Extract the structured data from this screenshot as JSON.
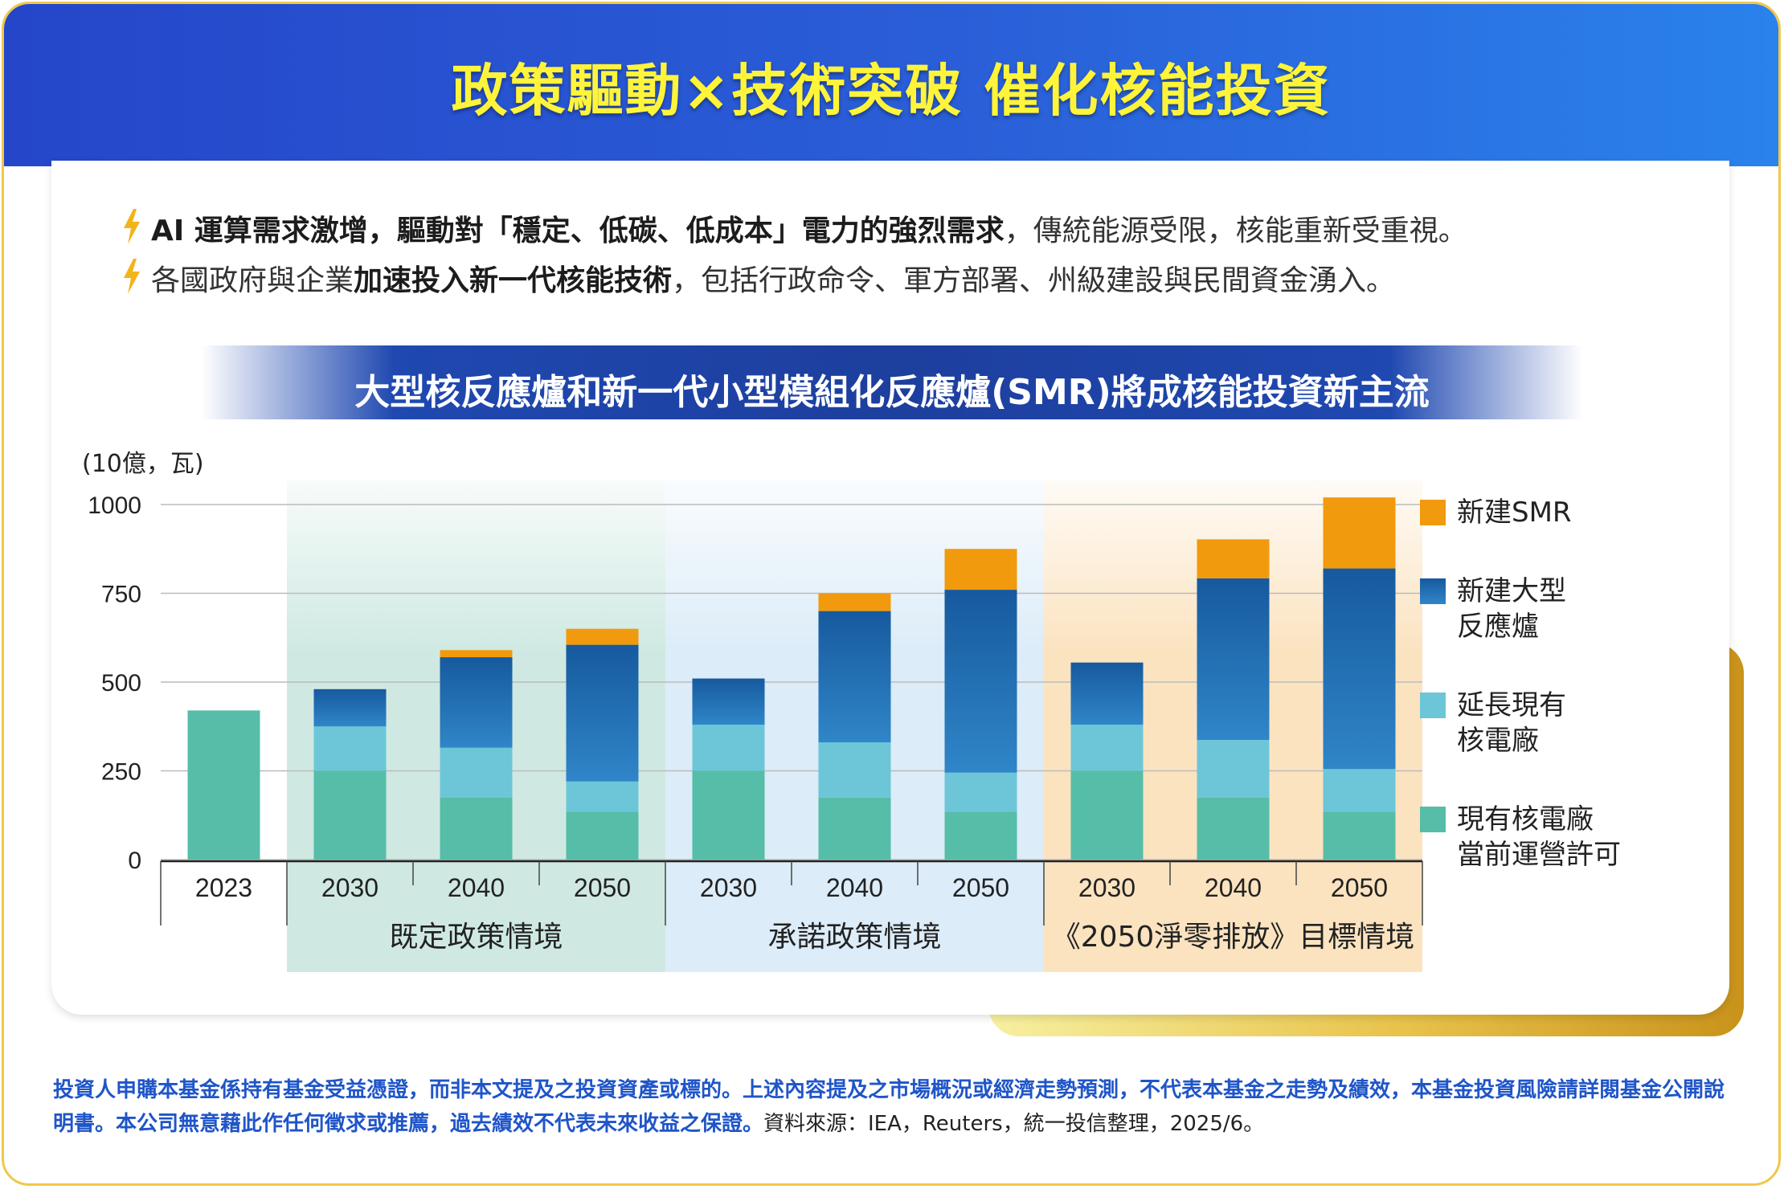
{
  "header": {
    "title": "政策驅動×技術突破  催化核能投資"
  },
  "bullets": [
    {
      "bold": "AI 運算需求激增，驅動對「穩定、低碳、低成本」電力的強烈需求",
      "rest": "，傳統能源受限，核能重新受重視。"
    },
    {
      "pre": "各國政府與企業",
      "bold": "加速投入新一代核能技術",
      "rest": "，包括行政命令、軍方部署、州級建設與民間資金湧入。"
    }
  ],
  "banner": {
    "title": "大型核反應爐和新一代小型模組化反應爐(SMR)將成核能投資新主流"
  },
  "colors": {
    "existing": "#56bda8",
    "extend": "#6cc6d8",
    "large": "#1a6fb5",
    "smr": "#f29a0e",
    "bg_stated": "#cfe9e2",
    "bg_announced": "#dcecf8",
    "bg_netzero": "#fbe3c0"
  },
  "chart_data": {
    "type": "bar",
    "stacked": true,
    "ylabel": "(10億，瓦)",
    "ylim": [
      0,
      1000
    ],
    "yticks": [
      "0",
      "250",
      "500",
      "750",
      "1000"
    ],
    "grid": true,
    "categories": [
      "2023",
      "2030",
      "2040",
      "2050",
      "2030",
      "2040",
      "2050",
      "2030",
      "2040",
      "2050"
    ],
    "groups": [
      {
        "label": "",
        "categories": [
          "2023"
        ]
      },
      {
        "label": "既定政策情境",
        "categories": [
          "2030",
          "2040",
          "2050"
        ]
      },
      {
        "label": "承諾政策情境",
        "categories": [
          "2030",
          "2040",
          "2050"
        ]
      },
      {
        "label": "《2050淨零排放》目標情境",
        "categories": [
          "2030",
          "2040",
          "2050"
        ]
      }
    ],
    "series": [
      {
        "name": "現有核電廠\n當前運營許可",
        "key": "existing",
        "values": [
          420,
          250,
          175,
          135,
          250,
          175,
          135,
          250,
          175,
          135
        ]
      },
      {
        "name": "延長現有\n核電廠",
        "key": "extend",
        "values": [
          0,
          125,
          140,
          85,
          130,
          155,
          110,
          130,
          162,
          120
        ]
      },
      {
        "name": "新建大型\n反應爐",
        "key": "large",
        "values": [
          0,
          105,
          255,
          385,
          130,
          370,
          515,
          175,
          455,
          565
        ]
      },
      {
        "name": "新建SMR",
        "key": "smr",
        "values": [
          0,
          0,
          20,
          45,
          0,
          50,
          115,
          0,
          110,
          200
        ]
      }
    ],
    "legend_position": "right"
  },
  "disclaimer": {
    "text": "投資人申購本基金係持有基金受益憑證，而非本文提及之投資資產或標的。上述內容提及之市場概況或經濟走勢預測，不代表本基金之走勢及績效，本基金投資風險請詳閱基金公開說明書。本公司無意藉此作任何徵求或推薦，過去績效不代表未來收益之保證。",
    "source": "資料來源：IEA，Reuters，統一投信整理，2025/6。"
  }
}
